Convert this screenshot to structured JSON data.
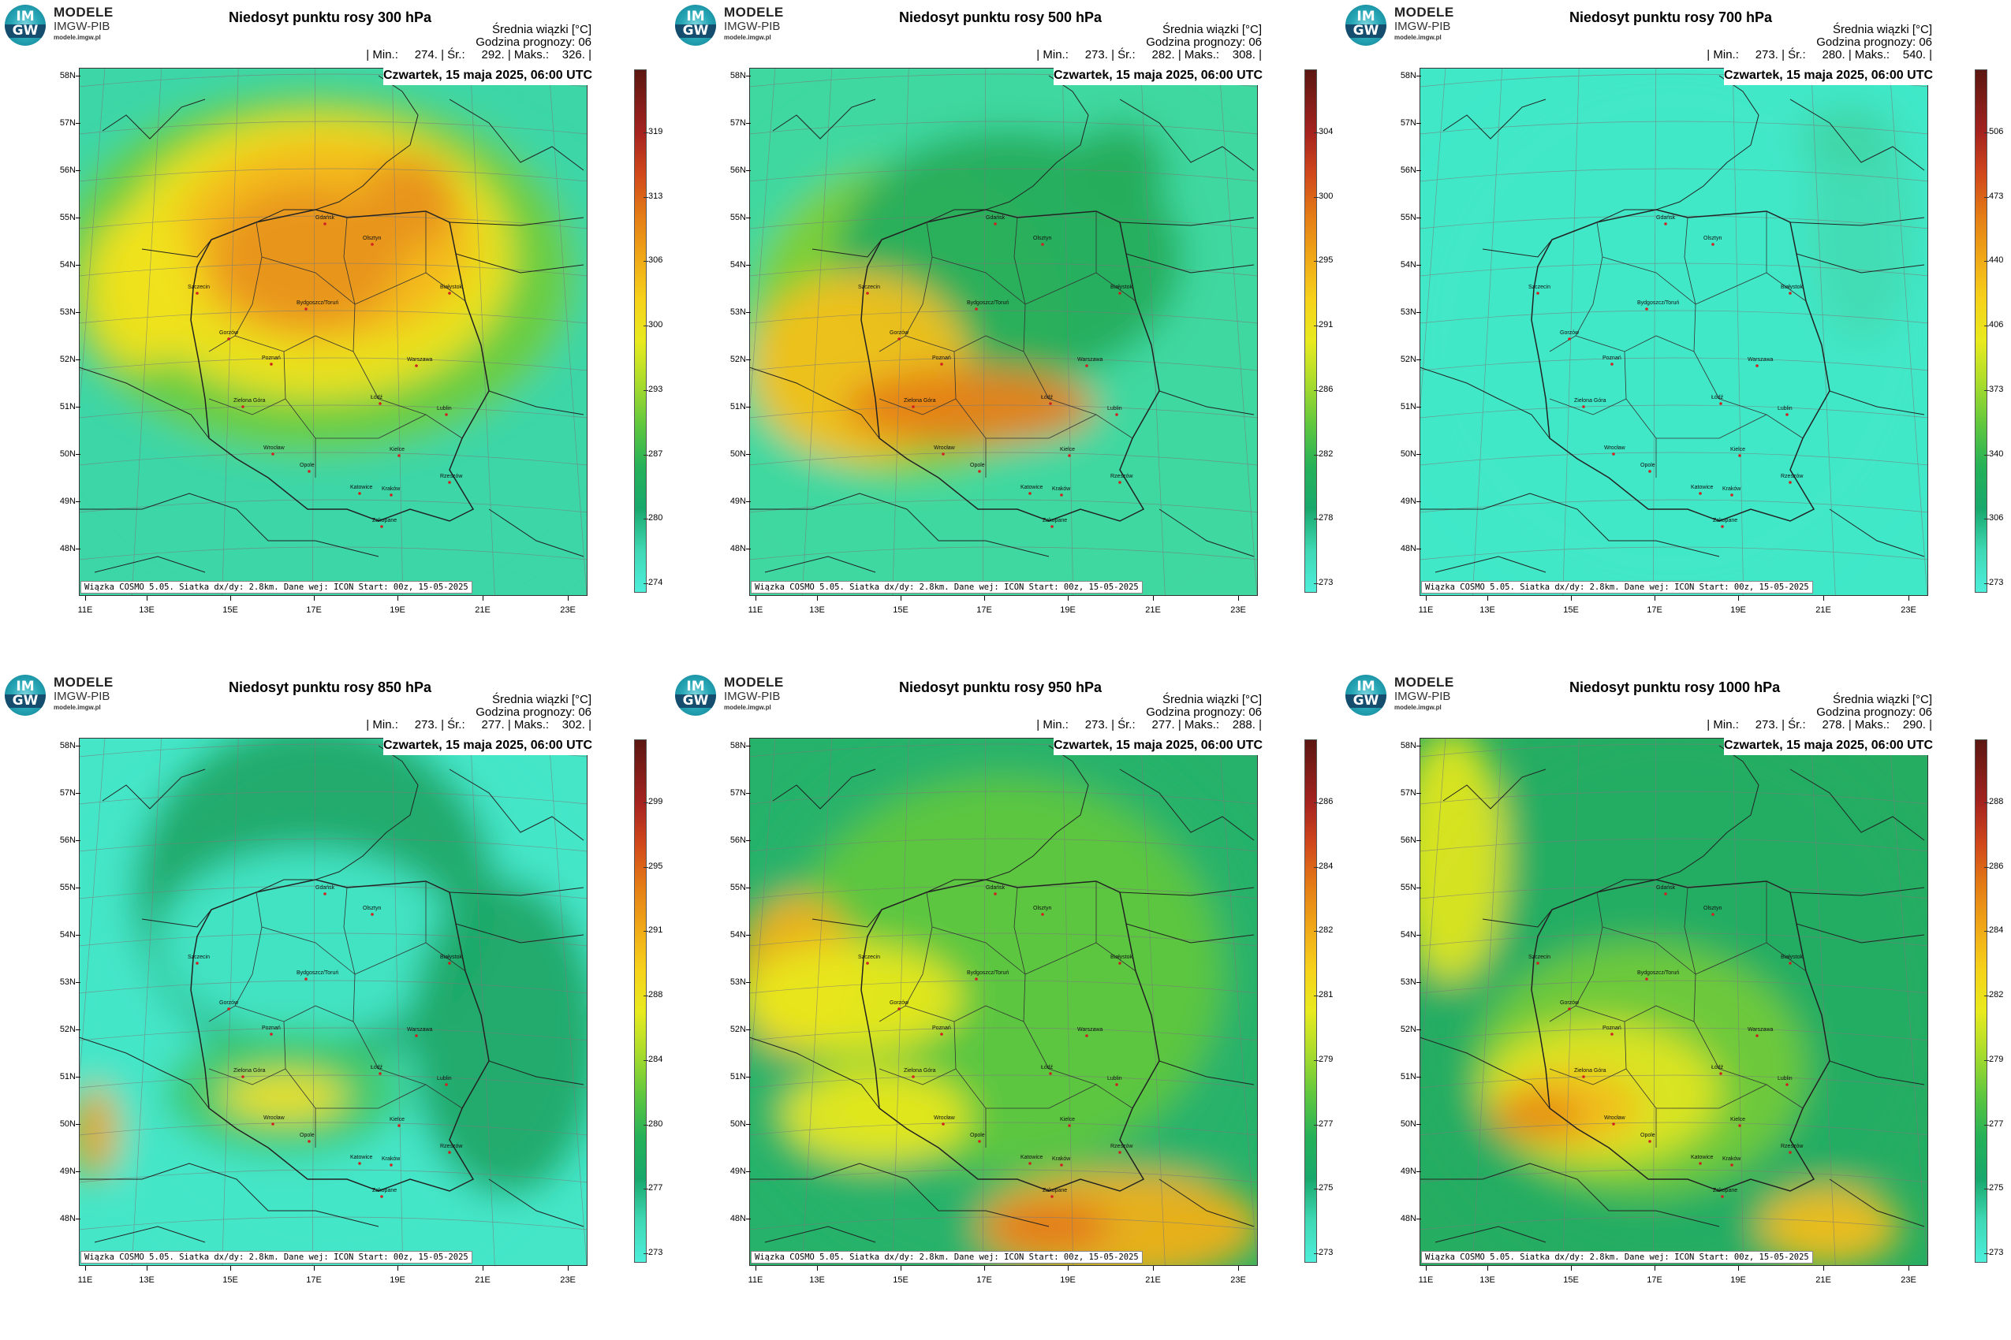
{
  "logo": {
    "line1": "IM",
    "line2": "GW",
    "name": "MODELE",
    "org": "IMGW-PIB",
    "site": "modele.imgw.pl"
  },
  "common": {
    "info_line1": "Średnia wiązki [°C]",
    "info_line2": "Godzina prognozy: 06",
    "date": "Czwartek, 15 maja 2025, 06:00 UTC",
    "credit": "Wiązka COSMO 5.05. Siatka dx/dy: 2.8km. Dane wej: ICON Start: 00z, 15-05-2025",
    "lat_labels": [
      "58N",
      "57N",
      "56N",
      "55N",
      "54N",
      "53N",
      "52N",
      "51N",
      "50N",
      "49N",
      "48N"
    ],
    "lon_labels": [
      "11E",
      "13E",
      "15E",
      "17E",
      "19E",
      "21E",
      "23E"
    ]
  },
  "cities": [
    "Gdańsk",
    "Olsztyn",
    "Szczecin",
    "Bydgoszcz/Toruń",
    "Białystok",
    "Gorzów",
    "Poznań",
    "Warszawa",
    "Zielona Góra",
    "Łódź",
    "Lublin",
    "Wrocław",
    "Kielce",
    "Opole",
    "Katowice",
    "Kraków",
    "Rzeszów",
    "Zakopane"
  ],
  "panels": [
    {
      "title": "Niedosyt punktu rosy 300 hPa",
      "stats": "| Min.:     274. | Śr.:     292. | Maks.:    326. |",
      "cbar": [
        "274",
        "280",
        "287",
        "293",
        "300",
        "306",
        "313",
        "319"
      ],
      "palette": [
        "#3dd6a6",
        "#6ccc3e",
        "#f0e21a",
        "#f4b81a",
        "#e7921a"
      ]
    },
    {
      "title": "Niedosyt punktu rosy 500 hPa",
      "stats": "| Min.:     273. | Śr.:     282. | Maks.:    308. |",
      "cbar": [
        "273",
        "278",
        "282",
        "286",
        "291",
        "295",
        "300",
        "304"
      ],
      "palette": [
        "#3fd8a0",
        "#25ad5c",
        "#7fcf34",
        "#f2c01a",
        "#e58019"
      ]
    },
    {
      "title": "Niedosyt punktu rosy 700 hPa",
      "stats": "| Min.:     273. | Śr.:     280. | Maks.:    540. |",
      "cbar": [
        "273",
        "306",
        "340",
        "373",
        "406",
        "440",
        "473",
        "506"
      ],
      "palette": [
        "#40e8c8",
        "#40e8c8",
        "#43dcb4",
        "#3fd6a6",
        "#40e8c8"
      ]
    },
    {
      "title": "Niedosyt punktu rosy 850 hPa",
      "stats": "| Min.:     273. | Śr.:     277. | Maks.:    302. |",
      "cbar": [
        "273",
        "277",
        "280",
        "284",
        "288",
        "291",
        "295",
        "299"
      ],
      "palette": [
        "#45e6c8",
        "#1fa968",
        "#3fc86a",
        "#f2e11c",
        "#e9a51a"
      ]
    },
    {
      "title": "Niedosyt punktu rosy 950 hPa",
      "stats": "| Min.:     273. | Śr.:     277. | Maks.:    288. |",
      "cbar": [
        "273",
        "275",
        "277",
        "279",
        "281",
        "282",
        "284",
        "286"
      ],
      "palette": [
        "#26b26a",
        "#5fc73e",
        "#e8e81e",
        "#f0b018",
        "#e2741a"
      ]
    },
    {
      "title": "Niedosyt punktu rosy 1000 hPa",
      "stats": "| Min.:     273. | Śr.:     278. | Maks.:    290. |",
      "cbar": [
        "273",
        "275",
        "277",
        "279",
        "282",
        "284",
        "286",
        "288"
      ],
      "palette": [
        "#25ad62",
        "#72cb38",
        "#dfe61f",
        "#f2be1a",
        "#e48a19"
      ]
    }
  ]
}
